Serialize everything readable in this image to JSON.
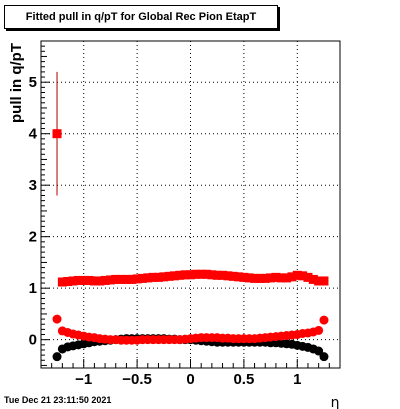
{
  "stamp": "Tue Dec 21 23:11:50 2021",
  "chart_data": {
    "type": "scatter",
    "title": "Fitted pull in q/pT for Global Rec Pion EtapT",
    "xlabel": "η",
    "ylabel": "pull in q/pT",
    "xlim": [
      -1.4,
      1.4
    ],
    "ylim": [
      -0.55,
      5.8
    ],
    "xticks": [
      -1,
      -0.5,
      0,
      0.5,
      1
    ],
    "xtick_labels": [
      "−1",
      "−0.5",
      "0",
      "0.5",
      "1"
    ],
    "yticks": [
      0,
      1,
      2,
      3,
      4,
      5
    ],
    "ytick_labels": [
      "0",
      "1",
      "2",
      "3",
      "4",
      "5"
    ],
    "grid": true,
    "colors": {
      "red": "#ff0000",
      "black": "#000000",
      "error_bar": "#aa0000"
    },
    "series": [
      {
        "marker": "square",
        "color": "#ff0000",
        "x": [
          -1.25,
          -1.2,
          -1.15,
          -1.1,
          -1.05,
          -1.0,
          -0.95,
          -0.9,
          -0.85,
          -0.8,
          -0.75,
          -0.7,
          -0.65,
          -0.6,
          -0.55,
          -0.5,
          -0.45,
          -0.4,
          -0.35,
          -0.3,
          -0.25,
          -0.2,
          -0.15,
          -0.1,
          -0.05,
          0.0,
          0.05,
          0.1,
          0.15,
          0.2,
          0.25,
          0.3,
          0.35,
          0.4,
          0.45,
          0.5,
          0.55,
          0.6,
          0.65,
          0.7,
          0.75,
          0.8,
          0.85,
          0.9,
          0.95,
          1.0,
          1.05,
          1.1,
          1.15,
          1.2,
          1.25
        ],
        "y": [
          4.0,
          1.12,
          1.13,
          1.14,
          1.15,
          1.15,
          1.15,
          1.14,
          1.14,
          1.15,
          1.16,
          1.17,
          1.17,
          1.17,
          1.17,
          1.18,
          1.19,
          1.2,
          1.21,
          1.21,
          1.22,
          1.23,
          1.24,
          1.25,
          1.26,
          1.26,
          1.27,
          1.27,
          1.27,
          1.26,
          1.25,
          1.25,
          1.24,
          1.23,
          1.22,
          1.21,
          1.2,
          1.19,
          1.19,
          1.19,
          1.2,
          1.21,
          1.2,
          1.2,
          1.22,
          1.25,
          1.24,
          1.21,
          1.17,
          1.14,
          1.14
        ],
        "yerr": [
          1.2,
          0.04,
          0.04,
          0.03,
          0.03,
          0.03,
          0.03,
          0.03,
          0.03,
          0.03,
          0.03,
          0.03,
          0.03,
          0.03,
          0.03,
          0.03,
          0.03,
          0.03,
          0.03,
          0.03,
          0.03,
          0.03,
          0.03,
          0.03,
          0.03,
          0.03,
          0.03,
          0.03,
          0.03,
          0.03,
          0.03,
          0.03,
          0.03,
          0.03,
          0.03,
          0.03,
          0.03,
          0.03,
          0.03,
          0.03,
          0.03,
          0.03,
          0.03,
          0.03,
          0.03,
          0.03,
          0.03,
          0.03,
          0.03,
          0.03,
          0.04
        ]
      },
      {
        "marker": "circle",
        "color": "#000000",
        "x": [
          -1.25,
          -1.2,
          -1.15,
          -1.1,
          -1.05,
          -1.0,
          -0.95,
          -0.9,
          -0.85,
          -0.8,
          -0.75,
          -0.7,
          -0.65,
          -0.6,
          -0.55,
          -0.5,
          -0.45,
          -0.4,
          -0.35,
          -0.3,
          -0.25,
          -0.2,
          -0.15,
          -0.1,
          -0.05,
          0.0,
          0.05,
          0.1,
          0.15,
          0.2,
          0.25,
          0.3,
          0.35,
          0.4,
          0.45,
          0.5,
          0.55,
          0.6,
          0.65,
          0.7,
          0.75,
          0.8,
          0.85,
          0.9,
          0.95,
          1.0,
          1.05,
          1.1,
          1.15,
          1.2,
          1.25
        ],
        "y": [
          -0.33,
          -0.18,
          -0.14,
          -0.12,
          -0.1,
          -0.08,
          -0.06,
          -0.04,
          -0.03,
          -0.02,
          -0.01,
          0.0,
          0.01,
          0.02,
          0.02,
          0.02,
          0.02,
          0.02,
          0.02,
          0.02,
          0.02,
          0.01,
          0.01,
          0.0,
          0.0,
          0.0,
          -0.01,
          -0.02,
          -0.03,
          -0.04,
          -0.05,
          -0.05,
          -0.05,
          -0.05,
          -0.05,
          -0.05,
          -0.05,
          -0.05,
          -0.05,
          -0.05,
          -0.06,
          -0.06,
          -0.07,
          -0.08,
          -0.09,
          -0.11,
          -0.13,
          -0.15,
          -0.18,
          -0.22,
          -0.33
        ]
      },
      {
        "marker": "circle",
        "color": "#ff0000",
        "x": [
          -1.25,
          -1.2,
          -1.15,
          -1.1,
          -1.05,
          -1.0,
          -0.95,
          -0.9,
          -0.85,
          -0.8,
          -0.75,
          -0.7,
          -0.65,
          -0.6,
          -0.55,
          -0.5,
          -0.45,
          -0.4,
          -0.35,
          -0.3,
          -0.25,
          -0.2,
          -0.15,
          -0.1,
          -0.05,
          0.0,
          0.05,
          0.1,
          0.15,
          0.2,
          0.25,
          0.3,
          0.35,
          0.4,
          0.45,
          0.5,
          0.55,
          0.6,
          0.65,
          0.7,
          0.75,
          0.8,
          0.85,
          0.9,
          0.95,
          1.0,
          1.05,
          1.1,
          1.15,
          1.2,
          1.25
        ],
        "y": [
          0.4,
          0.17,
          0.14,
          0.11,
          0.09,
          0.07,
          0.05,
          0.04,
          0.02,
          0.01,
          0.0,
          0.0,
          -0.01,
          -0.01,
          -0.01,
          -0.01,
          0.0,
          0.0,
          0.0,
          0.0,
          0.0,
          0.0,
          0.0,
          0.0,
          0.01,
          0.02,
          0.03,
          0.04,
          0.04,
          0.04,
          0.04,
          0.03,
          0.03,
          0.02,
          0.02,
          0.02,
          0.02,
          0.02,
          0.03,
          0.04,
          0.05,
          0.06,
          0.07,
          0.08,
          0.09,
          0.1,
          0.12,
          0.13,
          0.15,
          0.18,
          0.38
        ]
      }
    ]
  }
}
